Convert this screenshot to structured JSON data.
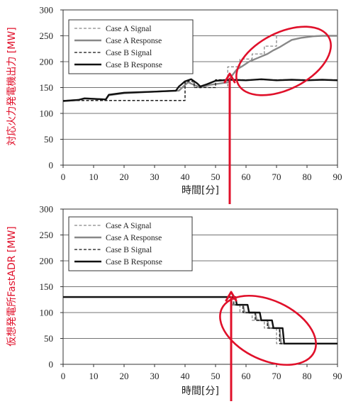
{
  "chart_data": [
    {
      "type": "line",
      "xlabel": "時間[分]",
      "ylabel": "対応火力発電機出力 [MW]",
      "xlim": [
        0,
        90
      ],
      "ylim": [
        0,
        300
      ],
      "xticks": [
        0,
        10,
        20,
        30,
        40,
        50,
        60,
        70,
        80,
        90
      ],
      "yticks": [
        0,
        50,
        100,
        150,
        200,
        250,
        300
      ],
      "grid": "horizontal",
      "legend_position": "top-left",
      "annotation": {
        "type": "arrow-and-ellipse",
        "color": "#e0102a",
        "arrow_x": 54.5
      },
      "series": [
        {
          "name": "Case A Signal",
          "style": "dashed",
          "color": "#888888",
          "x": [
            0,
            40,
            40,
            43,
            43,
            54,
            54,
            58,
            58,
            62,
            62,
            66,
            66,
            70,
            70,
            74,
            74,
            90
          ],
          "y": [
            125,
            125,
            160,
            160,
            150,
            150,
            190,
            190,
            205,
            205,
            215,
            215,
            230,
            230,
            250,
            250,
            250,
            250
          ]
        },
        {
          "name": "Case A Response",
          "style": "solid",
          "color": "#888888",
          "x": [
            0,
            5,
            7,
            14,
            15,
            20,
            30,
            38,
            40,
            41,
            43,
            45,
            48,
            54,
            55,
            57,
            59,
            61,
            63,
            65,
            67,
            69,
            71,
            73,
            75,
            78,
            82,
            85,
            90
          ],
          "y": [
            124,
            126,
            129,
            127,
            135,
            139,
            142,
            144,
            155,
            160,
            155,
            150,
            155,
            160,
            170,
            185,
            192,
            200,
            205,
            210,
            215,
            222,
            228,
            235,
            242,
            246,
            249,
            250,
            250
          ]
        },
        {
          "name": "Case B Signal",
          "style": "dashed",
          "color": "#111111",
          "x": [
            0,
            40,
            40,
            43,
            43,
            50,
            50,
            90
          ],
          "y": [
            125,
            125,
            162,
            162,
            150,
            150,
            165,
            165
          ]
        },
        {
          "name": "Case B Response",
          "style": "solid",
          "color": "#111111",
          "x": [
            0,
            5,
            7,
            14,
            15,
            20,
            30,
            37,
            38,
            40,
            42,
            44,
            45,
            47,
            50,
            55,
            60,
            65,
            70,
            75,
            80,
            85,
            90
          ],
          "y": [
            124,
            126,
            129,
            127,
            136,
            140,
            142,
            144,
            152,
            162,
            166,
            158,
            152,
            156,
            163,
            165,
            164,
            166,
            164,
            165,
            164,
            165,
            164
          ]
        }
      ]
    },
    {
      "type": "line",
      "xlabel": "時間[分]",
      "ylabel": "仮想発電所FastADR [MW]",
      "xlim": [
        0,
        90
      ],
      "ylim": [
        0,
        300
      ],
      "xticks": [
        0,
        10,
        20,
        30,
        40,
        50,
        60,
        70,
        80,
        90
      ],
      "yticks": [
        0,
        50,
        100,
        150,
        200,
        250,
        300
      ],
      "grid": "horizontal",
      "legend_position": "top-left",
      "annotation": {
        "type": "arrow-and-ellipse",
        "color": "#e0102a",
        "arrow_x": 55
      },
      "series": [
        {
          "name": "Case A Signal",
          "style": "dashed",
          "color": "#888888",
          "x": [
            0,
            55,
            55,
            58,
            58,
            62,
            62,
            66,
            66,
            70,
            70,
            90
          ],
          "y": [
            130,
            130,
            115,
            115,
            100,
            100,
            85,
            85,
            70,
            70,
            40,
            40
          ]
        },
        {
          "name": "Case A Response",
          "style": "solid",
          "color": "#888888",
          "x": [
            0,
            55,
            55.5,
            59,
            59.5,
            63,
            63.5,
            67,
            67.5,
            71,
            71.5,
            90
          ],
          "y": [
            130,
            130,
            115,
            115,
            100,
            100,
            85,
            85,
            70,
            70,
            40,
            40
          ]
        },
        {
          "name": "Case B Signal",
          "style": "dashed",
          "color": "#111111",
          "x": [
            0,
            56,
            56,
            59,
            59,
            63,
            63,
            67,
            67,
            71,
            71,
            90
          ],
          "y": [
            130,
            130,
            115,
            115,
            100,
            100,
            85,
            85,
            70,
            70,
            40,
            40
          ]
        },
        {
          "name": "Case B Response",
          "style": "solid",
          "color": "#111111",
          "x": [
            0,
            56.5,
            57,
            60.5,
            61,
            64.5,
            65,
            68.5,
            69,
            72,
            72.5,
            90
          ],
          "y": [
            130,
            130,
            115,
            115,
            100,
            100,
            85,
            85,
            70,
            70,
            40,
            40
          ]
        }
      ]
    }
  ]
}
